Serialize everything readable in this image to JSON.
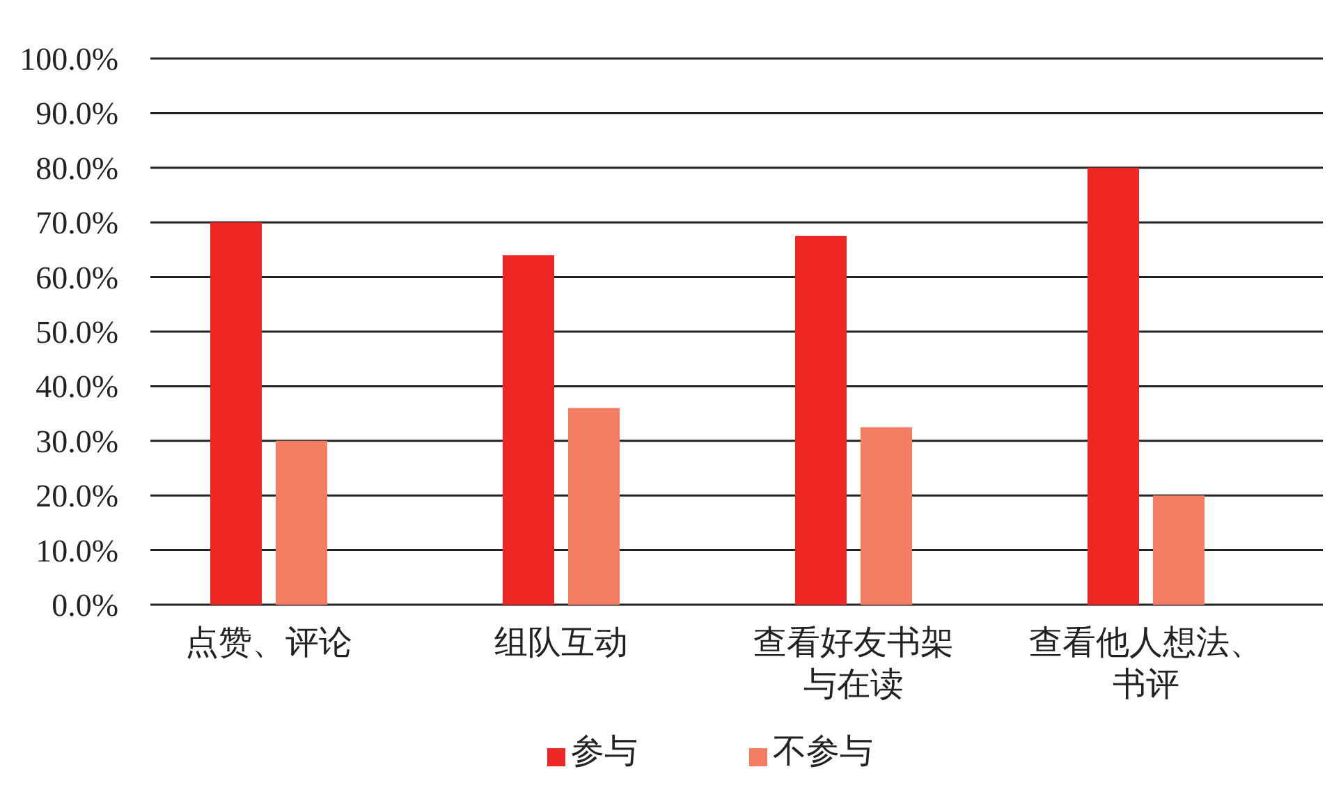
{
  "chart_data": {
    "type": "bar",
    "categories": [
      "点赞、评论",
      "组队互动",
      "查看好友书架与在读",
      "查看他人想法、书评"
    ],
    "series": [
      {
        "name": "参与",
        "color": "#ee2724",
        "values": [
          70,
          64,
          67.5,
          80
        ]
      },
      {
        "name": "不参与",
        "color": "#f47e64",
        "values": [
          30,
          36,
          32.5,
          20
        ]
      }
    ],
    "ylim": [
      0,
      100
    ],
    "yticks": [
      {
        "value": 0,
        "label": "0.0%"
      },
      {
        "value": 10,
        "label": "10.0%"
      },
      {
        "value": 20,
        "label": "20.0%"
      },
      {
        "value": 30,
        "label": "30.0%"
      },
      {
        "value": 40,
        "label": "40.0%"
      },
      {
        "value": 50,
        "label": "50.0%"
      },
      {
        "value": 60,
        "label": "60.0%"
      },
      {
        "value": 70,
        "label": "70.0%"
      },
      {
        "value": 80,
        "label": "80.0%"
      },
      {
        "value": 90,
        "label": "90.0%"
      },
      {
        "value": 100,
        "label": "100.0%"
      }
    ],
    "grid": "y",
    "legend": "bottom"
  }
}
